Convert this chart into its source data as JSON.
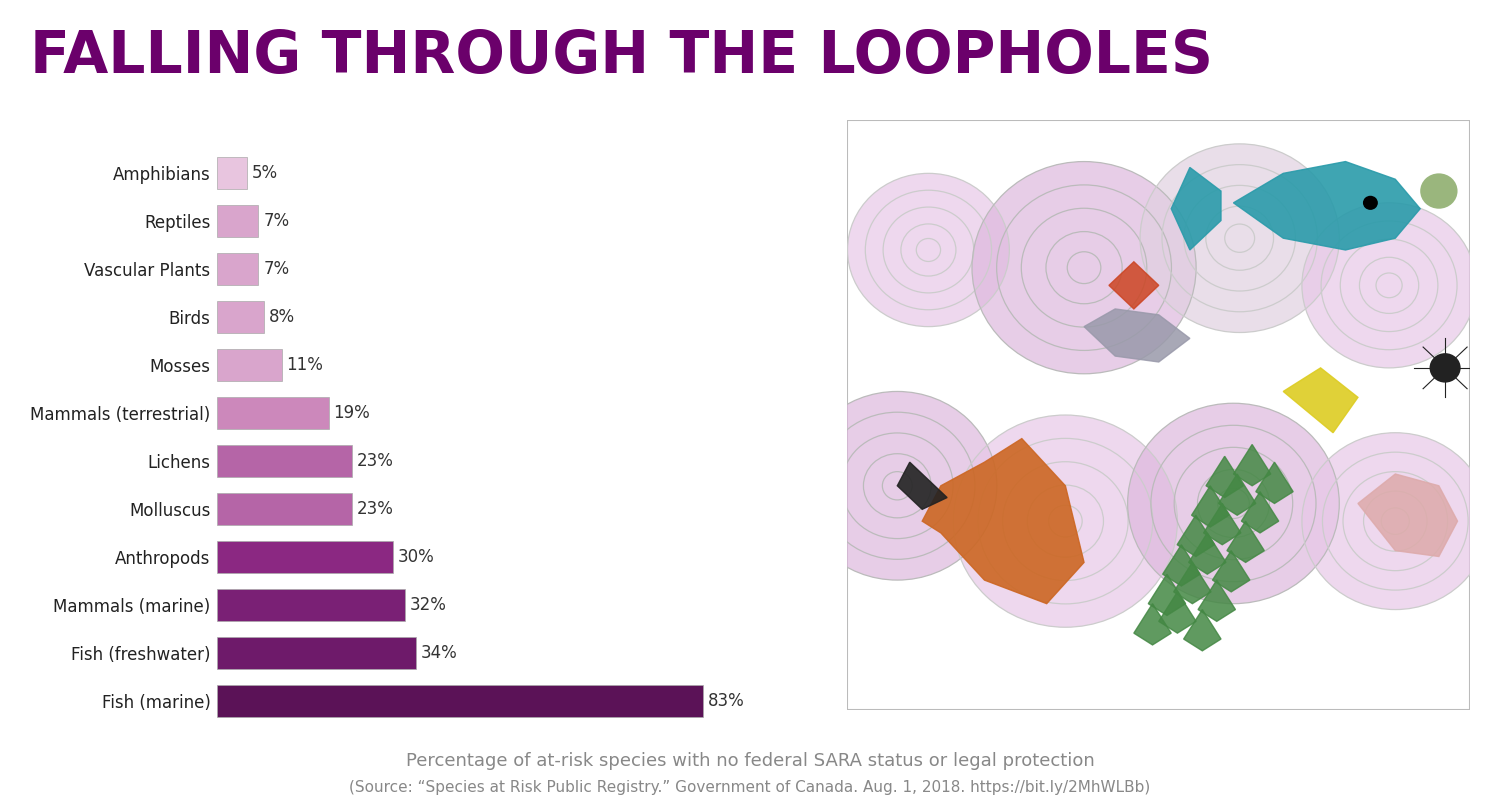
{
  "title": "FALLING THROUGH THE LOOPHOLES",
  "title_color": "#6B006B",
  "title_fontsize": 42,
  "categories": [
    "Fish (marine)",
    "Fish (freshwater)",
    "Mammals (marine)",
    "Anthropods",
    "Molluscus",
    "Lichens",
    "Mammals (terrestrial)",
    "Mosses",
    "Birds",
    "Vascular Plants",
    "Reptiles",
    "Amphibians"
  ],
  "values": [
    83,
    34,
    32,
    30,
    23,
    23,
    19,
    11,
    8,
    7,
    7,
    5
  ],
  "bar_colors": [
    "#5B1257",
    "#6E1A6A",
    "#7A2075",
    "#8B2882",
    "#B565A7",
    "#B565A7",
    "#CC88BB",
    "#D9A5CC",
    "#D9A5CC",
    "#D9A5CC",
    "#D9A5CC",
    "#E8C5DF"
  ],
  "xlabel_main": "Percentage of at-risk species with no federal SARA status or legal protection",
  "xlabel_source_pre": "(Source: “Species at Risk Public Registry.” Government of Canada. Aug. 1, 2018. ",
  "xlabel_source_link": "https://bit.ly/2MhWLBb",
  "xlabel_source_post": ")",
  "xlabel_main_color": "#888888",
  "xlabel_source_color": "#888888",
  "xlabel_link_color": "#4472C4",
  "xlabel_fontsize": 13,
  "xlabel_source_fontsize": 11,
  "value_label_fontsize": 12,
  "category_fontsize": 12,
  "bg_color": "#FFFFFF",
  "bar_edge_color": "#AAAAAA",
  "xlim": [
    0,
    100
  ]
}
